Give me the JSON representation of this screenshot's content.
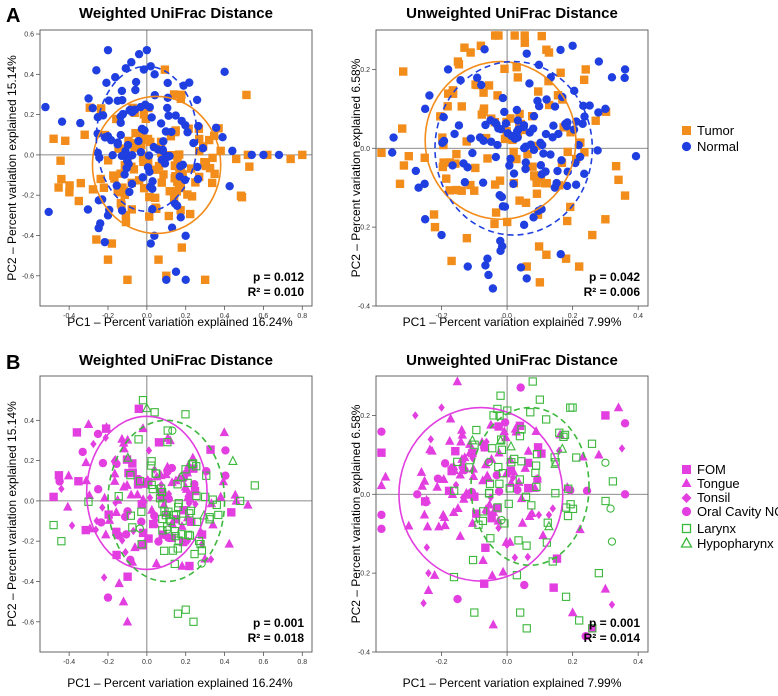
{
  "panel_labels": {
    "a": "A",
    "b": "B"
  },
  "legends": {
    "a": [
      {
        "label": "Tumor",
        "marker": "square",
        "color": "#f28c1b"
      },
      {
        "label": "Normal",
        "marker": "circle",
        "color": "#1f3fe0"
      }
    ],
    "b": [
      {
        "label": "FOM",
        "marker": "square",
        "color": "#e23ee0"
      },
      {
        "label": "Tongue",
        "marker": "triangle",
        "color": "#e23ee0"
      },
      {
        "label": "Tonsil",
        "marker": "diamond",
        "color": "#e23ee0"
      },
      {
        "label": "Oral Cavity NOS",
        "marker": "circle",
        "color": "#e23ee0"
      },
      {
        "label": "Larynx",
        "marker": "square-open",
        "color": "#3cb83c"
      },
      {
        "label": "Hypopharynx",
        "marker": "triangle-open",
        "color": "#3cb83c"
      }
    ]
  },
  "colors": {
    "tumor": "#f28c1b",
    "normal": "#1f3fe0",
    "oral": "#e23ee0",
    "larynx": "#3cb83c"
  },
  "chart_data": [
    {
      "type": "scatter",
      "panel": "A",
      "title": "Weighted UniFrac Distance",
      "ylabel": "PC2 – Percent variation explained 15.14%",
      "xlabel": "PC1 – Percent variation explained 16.24%",
      "xlim": [
        -0.55,
        0.85
      ],
      "ylim": [
        -0.75,
        0.62
      ],
      "xticks": [
        -0.4,
        -0.2,
        0,
        0.2,
        0.4,
        0.6,
        0.8
      ],
      "yticks": [
        -0.6,
        -0.4,
        -0.2,
        0,
        0.2,
        0.4,
        0.6
      ],
      "tick_labels_x": [
        "-0.4",
        "-0.2",
        "0.0",
        "0.2",
        "0.4",
        "0.6",
        "0.8"
      ],
      "tick_labels_y": [
        "-0.6",
        "-0.4",
        "-0.2",
        "0.0",
        "0.2",
        "0.4",
        "0.6"
      ],
      "stats": {
        "p": "p = 0.012",
        "r2": "R² = 0.010"
      },
      "ellipses": [
        {
          "group": "Tumor",
          "cx": 0.05,
          "cy": -0.05,
          "rx": 0.33,
          "ry": 0.34,
          "style": "solid",
          "color": "#f28c1b"
        },
        {
          "group": "Normal",
          "cx": 0.0,
          "cy": 0.08,
          "rx": 0.26,
          "ry": 0.36,
          "style": "dashed",
          "color": "#1f3fe0"
        }
      ],
      "seed": 11,
      "groups": [
        {
          "name": "Tumor",
          "marker": "square",
          "color": "#f28c1b",
          "n": 118,
          "cx": 0.05,
          "cy": -0.04,
          "sx": 0.2,
          "sy": 0.17,
          "extra": [
            [
              -0.48,
              0.08
            ],
            [
              -0.42,
              0.07
            ],
            [
              -0.32,
              0.1
            ],
            [
              0.38,
              0.02
            ],
            [
              0.46,
              -0.02
            ],
            [
              0.52,
              0.0
            ],
            [
              0.62,
              0.0
            ],
            [
              0.74,
              -0.02
            ],
            [
              0.8,
              0.0
            ],
            [
              -0.2,
              -0.52
            ],
            [
              -0.26,
              -0.42
            ],
            [
              -0.1,
              -0.62
            ],
            [
              0.1,
              -0.6
            ],
            [
              0.3,
              -0.62
            ],
            [
              0.06,
              -0.52
            ],
            [
              0.18,
              -0.46
            ],
            [
              -0.18,
              -0.44
            ],
            [
              -0.34,
              -0.14
            ],
            [
              -0.44,
              -0.12
            ],
            [
              0.14,
              0.3
            ]
          ]
        },
        {
          "name": "Normal",
          "marker": "circle",
          "color": "#1f3fe0",
          "n": 112,
          "cx": -0.02,
          "cy": 0.06,
          "sx": 0.18,
          "sy": 0.2,
          "extra": [
            [
              -0.04,
              0.5
            ],
            [
              0.0,
              0.52
            ],
            [
              -0.08,
              0.46
            ],
            [
              0.02,
              0.44
            ],
            [
              -0.2,
              0.52
            ],
            [
              0.04,
              0.4
            ],
            [
              -0.26,
              0.42
            ],
            [
              -0.3,
              0.28
            ],
            [
              0.54,
              0.0
            ],
            [
              0.6,
              0.0
            ],
            [
              0.68,
              0.0
            ],
            [
              0.44,
              0.02
            ],
            [
              0.26,
              -0.06
            ],
            [
              0.1,
              -0.62
            ],
            [
              0.2,
              -0.62
            ],
            [
              0.15,
              -0.58
            ],
            [
              -0.24,
              -0.34
            ],
            [
              -0.2,
              -0.3
            ],
            [
              0.02,
              -0.44
            ]
          ]
        }
      ]
    },
    {
      "type": "scatter",
      "panel": "A",
      "title": "Unweighted UniFrac Distance",
      "ylabel": "PC2 – Percent variation explained 6.58%",
      "xlabel": "PC1 – Percent variation explained 7.99%",
      "xlim": [
        -0.4,
        0.43
      ],
      "ylim": [
        -0.4,
        0.3
      ],
      "xticks": [
        -0.2,
        0,
        0.2,
        0.4
      ],
      "yticks": [
        -0.4,
        -0.2,
        0,
        0.2
      ],
      "tick_labels_x": [
        "-0.2",
        "0.0",
        "0.2",
        "0.4"
      ],
      "tick_labels_y": [
        "-0.4",
        "-0.2",
        "0.0",
        "0.2"
      ],
      "stats": {
        "p": "p = 0.042",
        "r2": "R² = 0.006"
      },
      "ellipses": [
        {
          "group": "Tumor",
          "cx": -0.02,
          "cy": 0.02,
          "rx": 0.23,
          "ry": 0.2,
          "style": "solid",
          "color": "#f28c1b"
        },
        {
          "group": "Normal",
          "cx": 0.02,
          "cy": 0.0,
          "rx": 0.24,
          "ry": 0.22,
          "style": "dashed",
          "color": "#1f3fe0"
        }
      ],
      "seed": 23,
      "groups": [
        {
          "name": "Tumor",
          "marker": "square",
          "color": "#f28c1b",
          "n": 108,
          "cx": -0.02,
          "cy": 0.02,
          "sx": 0.14,
          "sy": 0.12,
          "extra": [
            [
              -0.08,
              0.26
            ],
            [
              -0.15,
              0.22
            ],
            [
              0.12,
              0.25
            ],
            [
              0.24,
              0.2
            ],
            [
              0.34,
              -0.08
            ],
            [
              0.36,
              -0.12
            ],
            [
              0.3,
              -0.18
            ],
            [
              0.26,
              -0.22
            ],
            [
              0.22,
              -0.3
            ],
            [
              0.18,
              -0.28
            ],
            [
              0.12,
              -0.27
            ],
            [
              0.06,
              -0.3
            ],
            [
              -0.22,
              -0.2
            ],
            [
              -0.3,
              -0.02
            ],
            [
              -0.32,
              0.05
            ],
            [
              0.1,
              -0.34
            ]
          ]
        },
        {
          "name": "Normal",
          "marker": "circle",
          "color": "#1f3fe0",
          "n": 118,
          "cx": 0.03,
          "cy": 0.0,
          "sx": 0.15,
          "sy": 0.12,
          "extra": [
            [
              0.28,
              0.22
            ],
            [
              0.32,
              0.18
            ],
            [
              0.36,
              0.2
            ],
            [
              0.3,
              0.1
            ],
            [
              -0.27,
              -0.1
            ],
            [
              -0.25,
              -0.18
            ],
            [
              -0.2,
              -0.22
            ],
            [
              -0.12,
              -0.3
            ],
            [
              -0.06,
              -0.28
            ],
            [
              -0.02,
              -0.26
            ],
            [
              0.06,
              -0.33
            ],
            [
              -0.18,
              0.2
            ],
            [
              0.06,
              0.24
            ],
            [
              0.2,
              0.26
            ],
            [
              -0.25,
              0.1
            ]
          ]
        }
      ]
    },
    {
      "type": "scatter",
      "panel": "B",
      "title": "Weighted UniFrac Distance",
      "ylabel": "PC2 – Percent variation explained 15.14%",
      "xlabel": "PC1 – Percent variation explained 16.24%",
      "xlim": [
        -0.55,
        0.85
      ],
      "ylim": [
        -0.75,
        0.62
      ],
      "xticks": [
        -0.4,
        -0.2,
        0,
        0.2,
        0.4,
        0.6,
        0.8
      ],
      "yticks": [
        -0.6,
        -0.4,
        -0.2,
        0,
        0.2,
        0.4
      ],
      "tick_labels_x": [
        "-0.4",
        "-0.2",
        "0.0",
        "0.2",
        "0.4",
        "0.6",
        "0.8"
      ],
      "tick_labels_y": [
        "-0.6",
        "-0.4",
        "-0.2",
        "0.0",
        "0.2",
        "0.4"
      ],
      "stats": {
        "p": "p = 0.001",
        "r2": "R² = 0.018"
      },
      "ellipses": [
        {
          "group": "Oral cavity",
          "cx": 0.0,
          "cy": 0.04,
          "rx": 0.31,
          "ry": 0.38,
          "style": "solid",
          "color": "#e23ee0"
        },
        {
          "group": "Larynx/Hypopharynx",
          "cx": 0.1,
          "cy": 0.0,
          "rx": 0.3,
          "ry": 0.4,
          "style": "dashed",
          "color": "#3cb83c"
        }
      ],
      "seed": 37,
      "groups": [
        {
          "name": "Oral",
          "marker": "mixed-oral",
          "color": "#e23ee0",
          "n": 150,
          "cx": 0.0,
          "cy": 0.02,
          "sx": 0.19,
          "sy": 0.18,
          "extra": [
            [
              -0.48,
              0.02
            ],
            [
              -0.44,
              0.06
            ],
            [
              -0.36,
              0.34
            ],
            [
              -0.3,
              0.38
            ],
            [
              0.38,
              0.02
            ],
            [
              0.46,
              0.0
            ],
            [
              0.52,
              -0.02
            ],
            [
              -0.2,
              -0.48
            ],
            [
              -0.12,
              -0.5
            ],
            [
              -0.22,
              -0.38
            ],
            [
              -0.1,
              -0.6
            ],
            [
              0.12,
              0.3
            ],
            [
              -0.02,
              0.36
            ]
          ]
        },
        {
          "name": "Larynx",
          "marker": "mixed-larynx",
          "color": "#3cb83c",
          "n": 72,
          "cx": 0.1,
          "cy": -0.02,
          "sx": 0.15,
          "sy": 0.18,
          "extra": [
            [
              -0.02,
              0.5
            ],
            [
              0.0,
              0.46
            ],
            [
              0.04,
              0.44
            ],
            [
              0.2,
              -0.54
            ],
            [
              0.24,
              -0.6
            ],
            [
              0.16,
              -0.56
            ],
            [
              0.3,
              0.02
            ],
            [
              0.36,
              -0.02
            ],
            [
              0.48,
              0.0
            ],
            [
              -0.48,
              -0.12
            ],
            [
              -0.44,
              -0.2
            ]
          ]
        }
      ]
    },
    {
      "type": "scatter",
      "panel": "B",
      "title": "Unweighted UniFrac Distance",
      "ylabel": "PC2 – Percent variation explained 6.58%",
      "xlabel": "PC1 – Percent variation explained 7.99%",
      "xlim": [
        -0.4,
        0.43
      ],
      "ylim": [
        -0.4,
        0.3
      ],
      "xticks": [
        -0.2,
        0,
        0.2,
        0.4
      ],
      "yticks": [
        -0.4,
        -0.2,
        0,
        0.2
      ],
      "tick_labels_x": [
        "-0.2",
        "0.0",
        "0.2",
        "0.4"
      ],
      "tick_labels_y": [
        "-0.4",
        "-0.2",
        "0.0",
        "0.2"
      ],
      "stats": {
        "p": "p = 0.001",
        "r2": "R² = 0.014"
      },
      "ellipses": [
        {
          "group": "Oral cavity",
          "cx": -0.08,
          "cy": 0.0,
          "rx": 0.25,
          "ry": 0.22,
          "style": "solid",
          "color": "#e23ee0"
        },
        {
          "group": "Larynx/Hypopharynx",
          "cx": 0.07,
          "cy": 0.02,
          "rx": 0.18,
          "ry": 0.2,
          "style": "dashed",
          "color": "#3cb83c"
        }
      ],
      "seed": 53,
      "groups": [
        {
          "name": "Oral",
          "marker": "mixed-oral",
          "color": "#e23ee0",
          "n": 150,
          "cx": -0.06,
          "cy": 0.01,
          "sx": 0.15,
          "sy": 0.12,
          "extra": [
            [
              0.3,
              0.2
            ],
            [
              0.34,
              0.22
            ],
            [
              0.36,
              0.18
            ],
            [
              0.28,
              0.1
            ],
            [
              0.36,
              0.0
            ],
            [
              0.3,
              -0.24
            ],
            [
              0.32,
              -0.28
            ],
            [
              0.2,
              -0.3
            ],
            [
              0.26,
              -0.34
            ],
            [
              0.24,
              -0.36
            ],
            [
              -0.3,
              -0.08
            ],
            [
              -0.24,
              -0.2
            ],
            [
              -0.28,
              0.2
            ],
            [
              -0.2,
              0.22
            ]
          ]
        },
        {
          "name": "Larynx",
          "marker": "mixed-larynx",
          "color": "#3cb83c",
          "n": 74,
          "cx": 0.07,
          "cy": 0.03,
          "sx": 0.12,
          "sy": 0.11,
          "extra": [
            [
              -0.02,
              0.25
            ],
            [
              0.1,
              0.24
            ],
            [
              0.2,
              0.22
            ],
            [
              0.3,
              0.08
            ],
            [
              0.32,
              -0.12
            ],
            [
              0.28,
              -0.2
            ],
            [
              0.22,
              -0.32
            ],
            [
              0.26,
              -0.34
            ],
            [
              0.18,
              -0.26
            ],
            [
              0.04,
              -0.3
            ],
            [
              0.06,
              -0.34
            ],
            [
              -0.1,
              -0.3
            ]
          ]
        }
      ]
    }
  ]
}
